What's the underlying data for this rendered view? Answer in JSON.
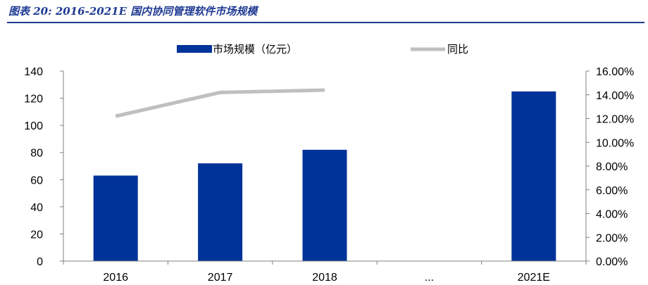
{
  "figure_title": "图表 20:  2016-2021E 国内协同管理软件市场规模",
  "chart_data": {
    "type": "bar",
    "categories": [
      "2016",
      "2017",
      "2018",
      "...",
      "2021E"
    ],
    "series": [
      {
        "name": "市场规模（亿元）",
        "type": "bar",
        "axis": "left",
        "values": [
          63,
          72,
          82,
          null,
          125
        ],
        "color": "#003399"
      },
      {
        "name": "同比",
        "type": "line",
        "axis": "right",
        "values": [
          0.122,
          0.142,
          0.144,
          null,
          null
        ],
        "color": "#bfbfbf"
      }
    ],
    "y_left": {
      "lim": [
        0,
        140
      ],
      "ticks": [
        0,
        20,
        40,
        60,
        80,
        100,
        120,
        140
      ],
      "tick_labels": [
        "0",
        "20",
        "40",
        "60",
        "80",
        "100",
        "120",
        "140"
      ]
    },
    "y_right": {
      "lim": [
        0,
        0.16
      ],
      "ticks": [
        0,
        0.02,
        0.04,
        0.06,
        0.08,
        0.1,
        0.12,
        0.14,
        0.16
      ],
      "tick_labels": [
        "0.00%",
        "2.00%",
        "4.00%",
        "6.00%",
        "8.00%",
        "10.00%",
        "12.00%",
        "14.00%",
        "16.00%"
      ]
    },
    "legend_position": "top",
    "grid": false
  }
}
